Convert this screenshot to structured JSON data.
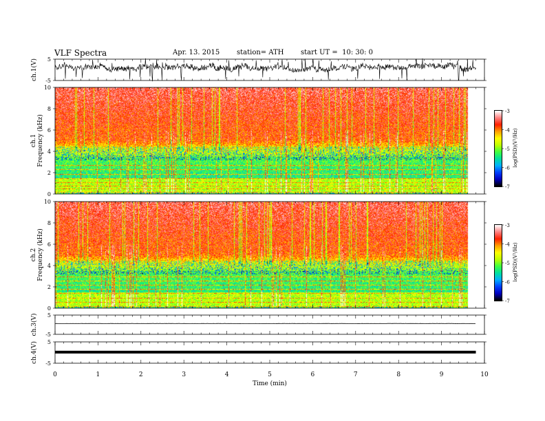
{
  "header": {
    "title": "VLF Spectra",
    "date": "Apr. 13. 2015",
    "station": "station= ATH",
    "start": "start UT =  10: 30: 0"
  },
  "colors": {
    "spectrogram_scale": [
      "#000000",
      "#0000c0",
      "#0040ff",
      "#00b0ff",
      "#00e0a0",
      "#40ff40",
      "#c0ff00",
      "#ffff00",
      "#ffa000",
      "#ff2000",
      "#ff8080",
      "#ffffff"
    ],
    "trace": "#000000"
  },
  "chart_data": [
    {
      "type": "line",
      "panel": "ch1-waveform",
      "ylabel": "ch.1(V)",
      "yticks": [
        "5",
        "-5"
      ],
      "ylim": [
        -5,
        5
      ],
      "xlim": [
        0,
        10
      ],
      "description_values": {
        "baseline_v": 1.3,
        "noise_amplitude_v": 2.5
      }
    },
    {
      "type": "heatmap",
      "panel": "ch1-spectrogram",
      "ylabel_channel": "ch.1",
      "ylabel": "Frequency  (kHz)",
      "ylim": [
        0,
        10
      ],
      "yticks": [
        "0",
        "2",
        "4",
        "6",
        "8",
        "10"
      ],
      "xlim": [
        0,
        10
      ],
      "data_end_min": 9.8,
      "colorbar": {
        "label": "log(PSD)(V²/Hz)",
        "ticks": [
          "-3",
          "-4",
          "-5",
          "-6",
          "-7"
        ],
        "range": [
          -7,
          -3
        ]
      },
      "bands_khz": [
        0.2,
        0.5,
        0.8,
        1.1,
        1.5,
        1.9,
        2.3,
        2.7
      ]
    },
    {
      "type": "heatmap",
      "panel": "ch2-spectrogram",
      "ylabel_channel": "ch.2",
      "ylabel": "Frequency  (kHz)",
      "ylim": [
        0,
        10
      ],
      "yticks": [
        "0",
        "2",
        "4",
        "6",
        "8",
        "10"
      ],
      "xlim": [
        0,
        10
      ],
      "data_end_min": 9.8,
      "colorbar": {
        "label": "log(PSD)(V²/Hz)",
        "ticks": [
          "-3",
          "-4",
          "-5",
          "-6",
          "-7"
        ],
        "range": [
          -7,
          -3
        ]
      },
      "bands_khz": [
        0.2,
        0.6,
        1.0,
        1.4,
        1.8,
        2.2,
        2.6,
        3.0
      ]
    },
    {
      "type": "line",
      "panel": "ch3-waveform",
      "ylabel": "ch.3(V)",
      "yticks": [
        "5",
        "-5"
      ],
      "ylim": [
        -5,
        5
      ],
      "xlim": [
        0,
        10
      ],
      "description_values": {
        "baseline_v": 0.6,
        "noise_amplitude_v": 0.1
      }
    },
    {
      "type": "line",
      "panel": "ch4-waveform",
      "ylabel": "ch.4(V)",
      "yticks": [
        "5",
        "-5"
      ],
      "ylim": [
        -5,
        5
      ],
      "xlim": [
        0,
        10
      ],
      "description_values": {
        "baseline_v": 0.2,
        "noise_amplitude_v": 0.2
      }
    }
  ],
  "xaxis": {
    "label": "Time  (min)",
    "ticks": [
      "0",
      "1",
      "2",
      "3",
      "4",
      "5",
      "6",
      "7",
      "8",
      "9",
      "10"
    ]
  }
}
